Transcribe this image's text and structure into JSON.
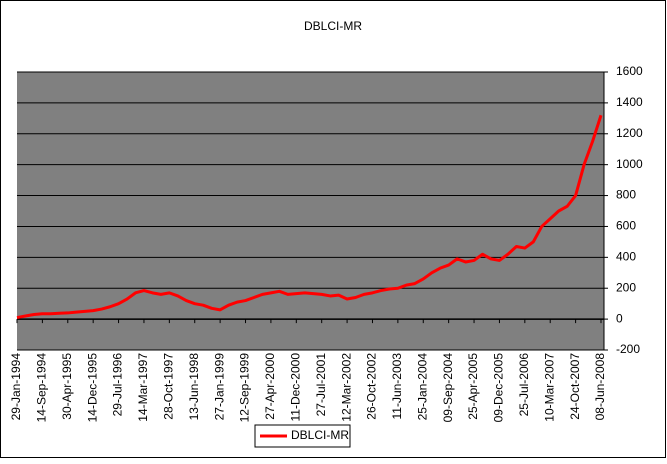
{
  "chart_data": {
    "type": "line",
    "title": "DBLCI-MR",
    "categories": [
      "29-Jan-1994",
      null,
      null,
      "14-Sep-1994",
      null,
      null,
      "30-Apr-1995",
      null,
      null,
      "14-Dec-1995",
      null,
      null,
      "29-Jul-1996",
      null,
      null,
      "14-Mar-1997",
      null,
      null,
      "28-Oct-1997",
      null,
      null,
      "13-Jun-1998",
      null,
      null,
      "27-Jan-1999",
      null,
      null,
      "12-Sep-1999",
      null,
      null,
      "27-Apr-2000",
      null,
      null,
      "11-Dec-2000",
      null,
      null,
      "27-Jul-2001",
      null,
      null,
      "12-Mar-2002",
      null,
      null,
      "26-Oct-2002",
      null,
      null,
      "11-Jun-2003",
      null,
      null,
      "25-Jan-2004",
      null,
      null,
      "09-Sep-2004",
      null,
      null,
      "25-Apr-2005",
      null,
      null,
      "09-Dec-2005",
      null,
      null,
      "25-Jul-2006",
      null,
      null,
      "10-Mar-2007",
      null,
      null,
      "24-Oct-2007",
      null,
      null,
      "08-Jun-2008"
    ],
    "series": [
      {
        "name": "DBLCI-MR",
        "color": "#ff0000",
        "values": [
          10,
          20,
          30,
          35,
          35,
          38,
          40,
          45,
          50,
          55,
          65,
          80,
          100,
          130,
          170,
          185,
          170,
          160,
          170,
          150,
          120,
          100,
          90,
          70,
          60,
          90,
          110,
          120,
          140,
          160,
          170,
          180,
          160,
          165,
          170,
          165,
          160,
          150,
          155,
          130,
          140,
          160,
          170,
          185,
          195,
          200,
          220,
          230,
          260,
          300,
          330,
          350,
          390,
          370,
          380,
          420,
          390,
          380,
          420,
          470,
          460,
          500,
          600,
          650,
          700,
          730,
          800,
          1000,
          1150,
          1320
        ]
      }
    ],
    "ylim": [
      -200,
      1600
    ],
    "yticks": [
      -200,
      0,
      200,
      400,
      600,
      800,
      1000,
      1200,
      1400,
      1600
    ],
    "grid": true,
    "legend": "bottom"
  }
}
